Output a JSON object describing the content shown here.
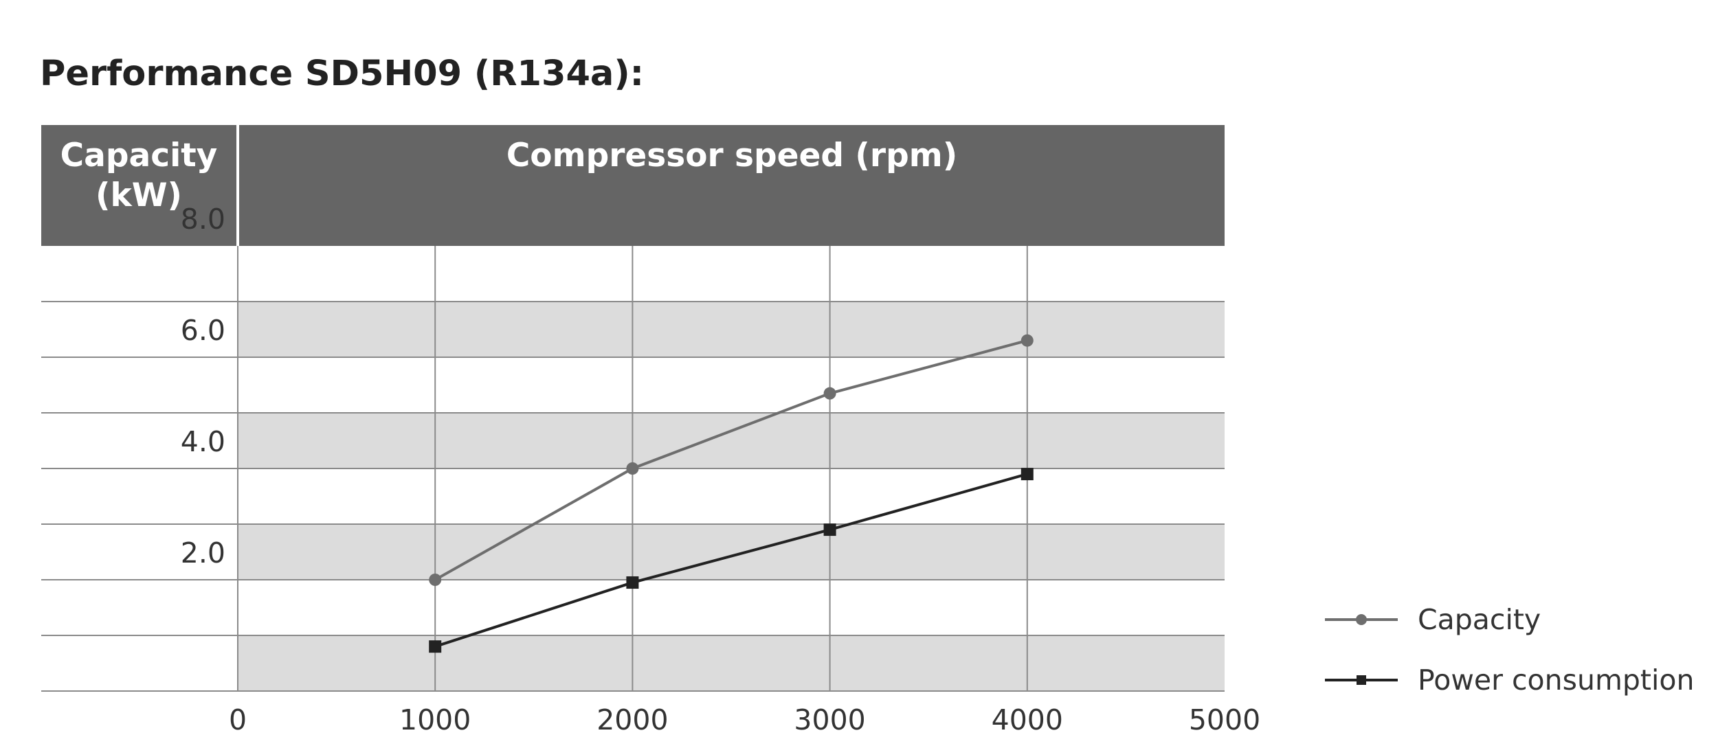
{
  "title": "Performance SD5H09 (R134a):",
  "chart_data": {
    "type": "line",
    "title": "Performance SD5H09 (R134a):",
    "ylabel": "Capacity (kW)",
    "ylabel_lines": [
      "Capacity",
      "(kW)"
    ],
    "xlabel": "Compressor speed (rpm)",
    "xlim": [
      0,
      5000
    ],
    "ylim": [
      0,
      8.0
    ],
    "x_ticks": [
      "0",
      "1000",
      "2000",
      "3000",
      "4000",
      "5000"
    ],
    "y_ticks": [
      "8.0",
      "6.0",
      "4.0",
      "2.0"
    ],
    "grid": true,
    "legend_position": "bottom-right",
    "series": [
      {
        "name": "Capacity",
        "marker": "circle",
        "color": "#6e6e6e",
        "x": [
          1000,
          2000,
          3000,
          4000
        ],
        "y": [
          2.0,
          4.0,
          5.35,
          6.3
        ]
      },
      {
        "name": "Power consumption",
        "marker": "square",
        "color": "#222222",
        "x": [
          1000,
          2000,
          3000,
          4000
        ],
        "y": [
          0.8,
          1.95,
          2.9,
          3.9
        ]
      }
    ],
    "colors": {
      "header_bg": "#656565",
      "band": "#dcdcdc",
      "grid": "#8a8a8a"
    }
  }
}
